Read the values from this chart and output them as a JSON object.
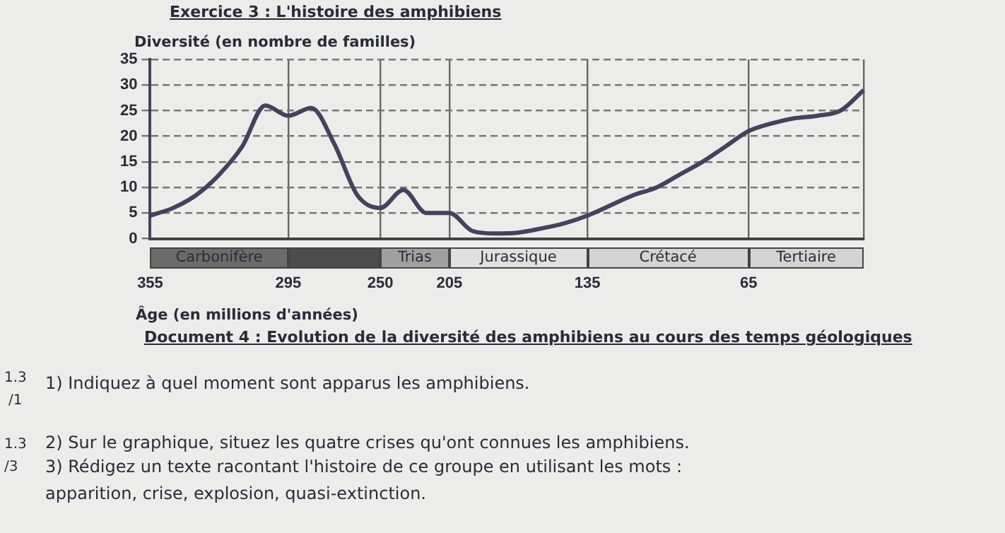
{
  "chart_data": {
    "type": "line",
    "title": "Exercice 3 : L'histoire des amphibiens",
    "ylabel": "Diversité (en nombre de familles)",
    "xlabel": "Âge (en millions d'années)",
    "categories": [
      "355",
      null,
      null,
      null,
      null,
      null,
      "295",
      null,
      null,
      null,
      "250",
      null,
      null,
      "205",
      null,
      null,
      null,
      null,
      null,
      "135",
      null,
      null,
      null,
      null,
      null,
      null,
      "65",
      null,
      null,
      null,
      null,
      null
    ],
    "series": [
      {
        "color": "#4a3f5c",
        "values": [
          4.5,
          6,
          8.5,
          12.5,
          18,
          26,
          24,
          25.5,
          18.5,
          8.5,
          6,
          9.5,
          5,
          5,
          1.5,
          1,
          1.2,
          2,
          3,
          4.5,
          6.5,
          8.5,
          10,
          12.5,
          15,
          18,
          21,
          22.5,
          23.5,
          24,
          25,
          29
        ]
      }
    ],
    "ylim": [
      0,
      35
    ],
    "yticks": [
      0,
      5,
      10,
      15,
      20,
      25,
      30,
      35
    ],
    "grid": true,
    "marker": "none",
    "line_style": "solid",
    "annotations": [
      "Carbonifère",
      "Trias",
      "Jurassique",
      "Crétacé",
      "Tertiaire",
      "Document 4 : Evolution de la diversité des amphibiens au cours des temps géologiques",
      "1.3",
      "/1",
      "1) Indiquez à quel moment sont apparus les amphibiens.",
      "1.3",
      "2) Sur le graphique, situez les quatre crises qu'ont connues les amphibiens.",
      "/3",
      "3) Rédigez un texte racontant l'histoire de ce groupe en utilisant les mots :",
      "apparition, crise, explosion, quasi-extinction."
    ]
  }
}
